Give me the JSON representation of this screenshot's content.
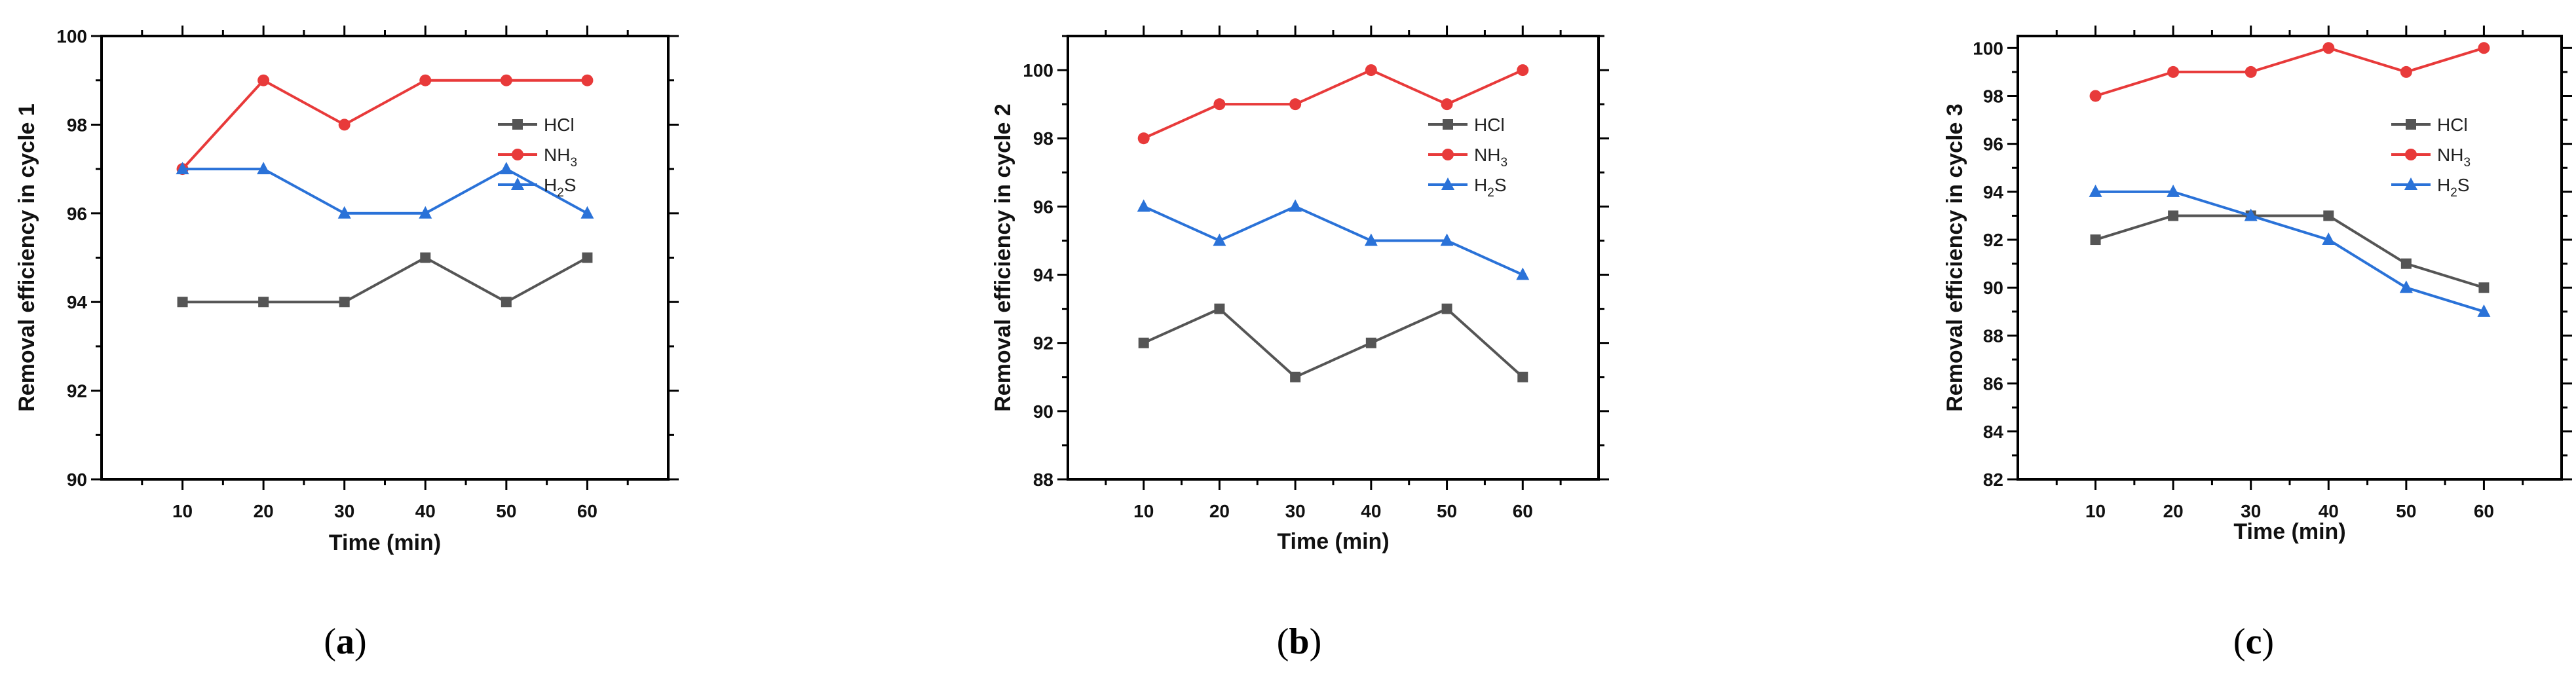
{
  "chart_data": [
    {
      "type": "line",
      "panel": "a",
      "x": [
        10,
        20,
        30,
        40,
        50,
        60
      ],
      "xlabel": "Time (min)",
      "ylabel": "Removal efficiency in cycle 1",
      "xticks": [
        10,
        20,
        30,
        40,
        50,
        60
      ],
      "yticks": [
        90,
        92,
        94,
        96,
        98,
        100
      ],
      "xlim": [
        0,
        70
      ],
      "ylim": [
        90,
        100
      ],
      "series": [
        {
          "name": "HCl",
          "name_main": "HCl",
          "name_sub": "",
          "name_tail": "",
          "color": "#555555",
          "marker": "square",
          "values": [
            94,
            94,
            94,
            95,
            94,
            95
          ]
        },
        {
          "name": "NH3",
          "name_main": "NH",
          "name_sub": "3",
          "name_tail": "",
          "color": "#e83a3a",
          "marker": "circle",
          "values": [
            97,
            99,
            98,
            99,
            99,
            99
          ]
        },
        {
          "name": "H2S",
          "name_main": "H",
          "name_sub": "2",
          "name_tail": "S",
          "color": "#2a72d8",
          "marker": "triangle",
          "values": [
            97,
            97,
            96,
            96,
            97,
            96
          ]
        }
      ]
    },
    {
      "type": "line",
      "panel": "b",
      "x": [
        10,
        20,
        30,
        40,
        50,
        60
      ],
      "xlabel": "Time (min)",
      "ylabel": "Removal efficiency in cycle 2",
      "xticks": [
        10,
        20,
        30,
        40,
        50,
        60
      ],
      "yticks": [
        88,
        90,
        92,
        94,
        96,
        98,
        100
      ],
      "xlim": [
        0,
        70
      ],
      "ylim": [
        88,
        101
      ],
      "series": [
        {
          "name": "HCl",
          "name_main": "HCl",
          "name_sub": "",
          "name_tail": "",
          "color": "#555555",
          "marker": "square",
          "values": [
            92,
            93,
            91,
            92,
            93,
            91
          ]
        },
        {
          "name": "NH3",
          "name_main": "NH",
          "name_sub": "3",
          "name_tail": "",
          "color": "#e83a3a",
          "marker": "circle",
          "values": [
            98,
            99,
            99,
            100,
            99,
            100
          ]
        },
        {
          "name": "H2S",
          "name_main": "H",
          "name_sub": "2",
          "name_tail": "S",
          "color": "#2a72d8",
          "marker": "triangle",
          "values": [
            96,
            95,
            96,
            95,
            95,
            94
          ]
        }
      ]
    },
    {
      "type": "line",
      "panel": "c",
      "x": [
        10,
        20,
        30,
        40,
        50,
        60
      ],
      "xlabel": "Time (min)",
      "ylabel": "Removal efficiency in cycle 3",
      "xticks": [
        10,
        20,
        30,
        40,
        50,
        60
      ],
      "yticks": [
        82,
        84,
        86,
        88,
        90,
        92,
        94,
        96,
        98,
        100
      ],
      "xlim": [
        0,
        70
      ],
      "ylim": [
        82,
        100.5
      ],
      "series": [
        {
          "name": "HCl",
          "name_main": "HCl",
          "name_sub": "",
          "name_tail": "",
          "color": "#555555",
          "marker": "square",
          "values": [
            92,
            93,
            93,
            93,
            91,
            90
          ]
        },
        {
          "name": "NH3",
          "name_main": "NH",
          "name_sub": "3",
          "name_tail": "",
          "color": "#e83a3a",
          "marker": "circle",
          "values": [
            98,
            99,
            99,
            100,
            99,
            100
          ]
        },
        {
          "name": "H2S",
          "name_main": "H",
          "name_sub": "2",
          "name_tail": "S",
          "color": "#2a72d8",
          "marker": "triangle",
          "values": [
            94,
            94,
            93,
            92,
            90,
            89
          ]
        }
      ]
    }
  ]
}
